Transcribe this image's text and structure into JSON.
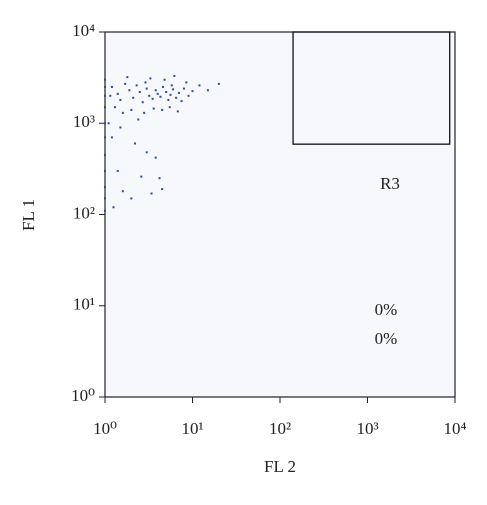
{
  "chart_data": {
    "type": "scatter",
    "log_scale": true,
    "grid": false,
    "xlabel": "FL 2",
    "ylabel": "FL 1",
    "xlim": [
      1,
      10000
    ],
    "ylim": [
      1,
      10000
    ],
    "xticks": [
      {
        "value": 1,
        "label": "10⁰"
      },
      {
        "value": 10,
        "label": "10¹"
      },
      {
        "value": 100,
        "label": "10²"
      },
      {
        "value": 1000,
        "label": "10³"
      },
      {
        "value": 10000,
        "label": "10⁴"
      }
    ],
    "yticks": [
      {
        "value": 1,
        "label": "10⁰"
      },
      {
        "value": 10,
        "label": "10¹"
      },
      {
        "value": 100,
        "label": "10²"
      },
      {
        "value": 1000,
        "label": "10³"
      },
      {
        "value": 10000,
        "label": "10⁴"
      }
    ],
    "series": [
      {
        "color": "#2b4a9a",
        "x": [
          1.2,
          1.4,
          1.5,
          1.7,
          1.9,
          2.1,
          2.3,
          2.5,
          2.7,
          3.0,
          3.2,
          3.5,
          3.8,
          4.0,
          4.3,
          4.6,
          5.0,
          5.3,
          5.6,
          6.0,
          6.5,
          7.0,
          7.5,
          8.0,
          9.0,
          10,
          12,
          15,
          20,
          1.3,
          1.6,
          2.0,
          2.8,
          3.6,
          4.5,
          5.5,
          6.8,
          1.8,
          3.3,
          4.8,
          6.2,
          2.4,
          1.5,
          1.2,
          2.2,
          3.0,
          3.8,
          1.4,
          2.6,
          4.2,
          1.6,
          2.0,
          3.4,
          1.25,
          4.5,
          1.1,
          1.15,
          2.9,
          5.8,
          8.5,
          1,
          1,
          1,
          1,
          1,
          1,
          1,
          1,
          1,
          1,
          1
        ],
        "values": [
          2500,
          2100,
          1800,
          2700,
          2300,
          1900,
          2600,
          2200,
          1700,
          2400,
          2000,
          1850,
          2300,
          2100,
          1950,
          2500,
          2200,
          1800,
          2050,
          2350,
          1900,
          2150,
          1750,
          2400,
          2000,
          2250,
          2600,
          2300,
          2700,
          1500,
          1300,
          1400,
          1300,
          1450,
          1400,
          1500,
          1350,
          3200,
          3100,
          3000,
          3300,
          1100,
          900,
          700,
          600,
          480,
          420,
          300,
          260,
          250,
          180,
          150,
          170,
          120,
          190,
          1000,
          2000,
          2800,
          2600,
          2800,
          110,
          150,
          200,
          300,
          450,
          700,
          1000,
          1500,
          2000,
          2500,
          3000
        ]
      }
    ],
    "gate": {
      "label": "R3",
      "xlim": [
        141,
        8700
      ],
      "ylim": [
        590,
        10000
      ]
    },
    "annotations": [
      "0%",
      "0%"
    ]
  }
}
